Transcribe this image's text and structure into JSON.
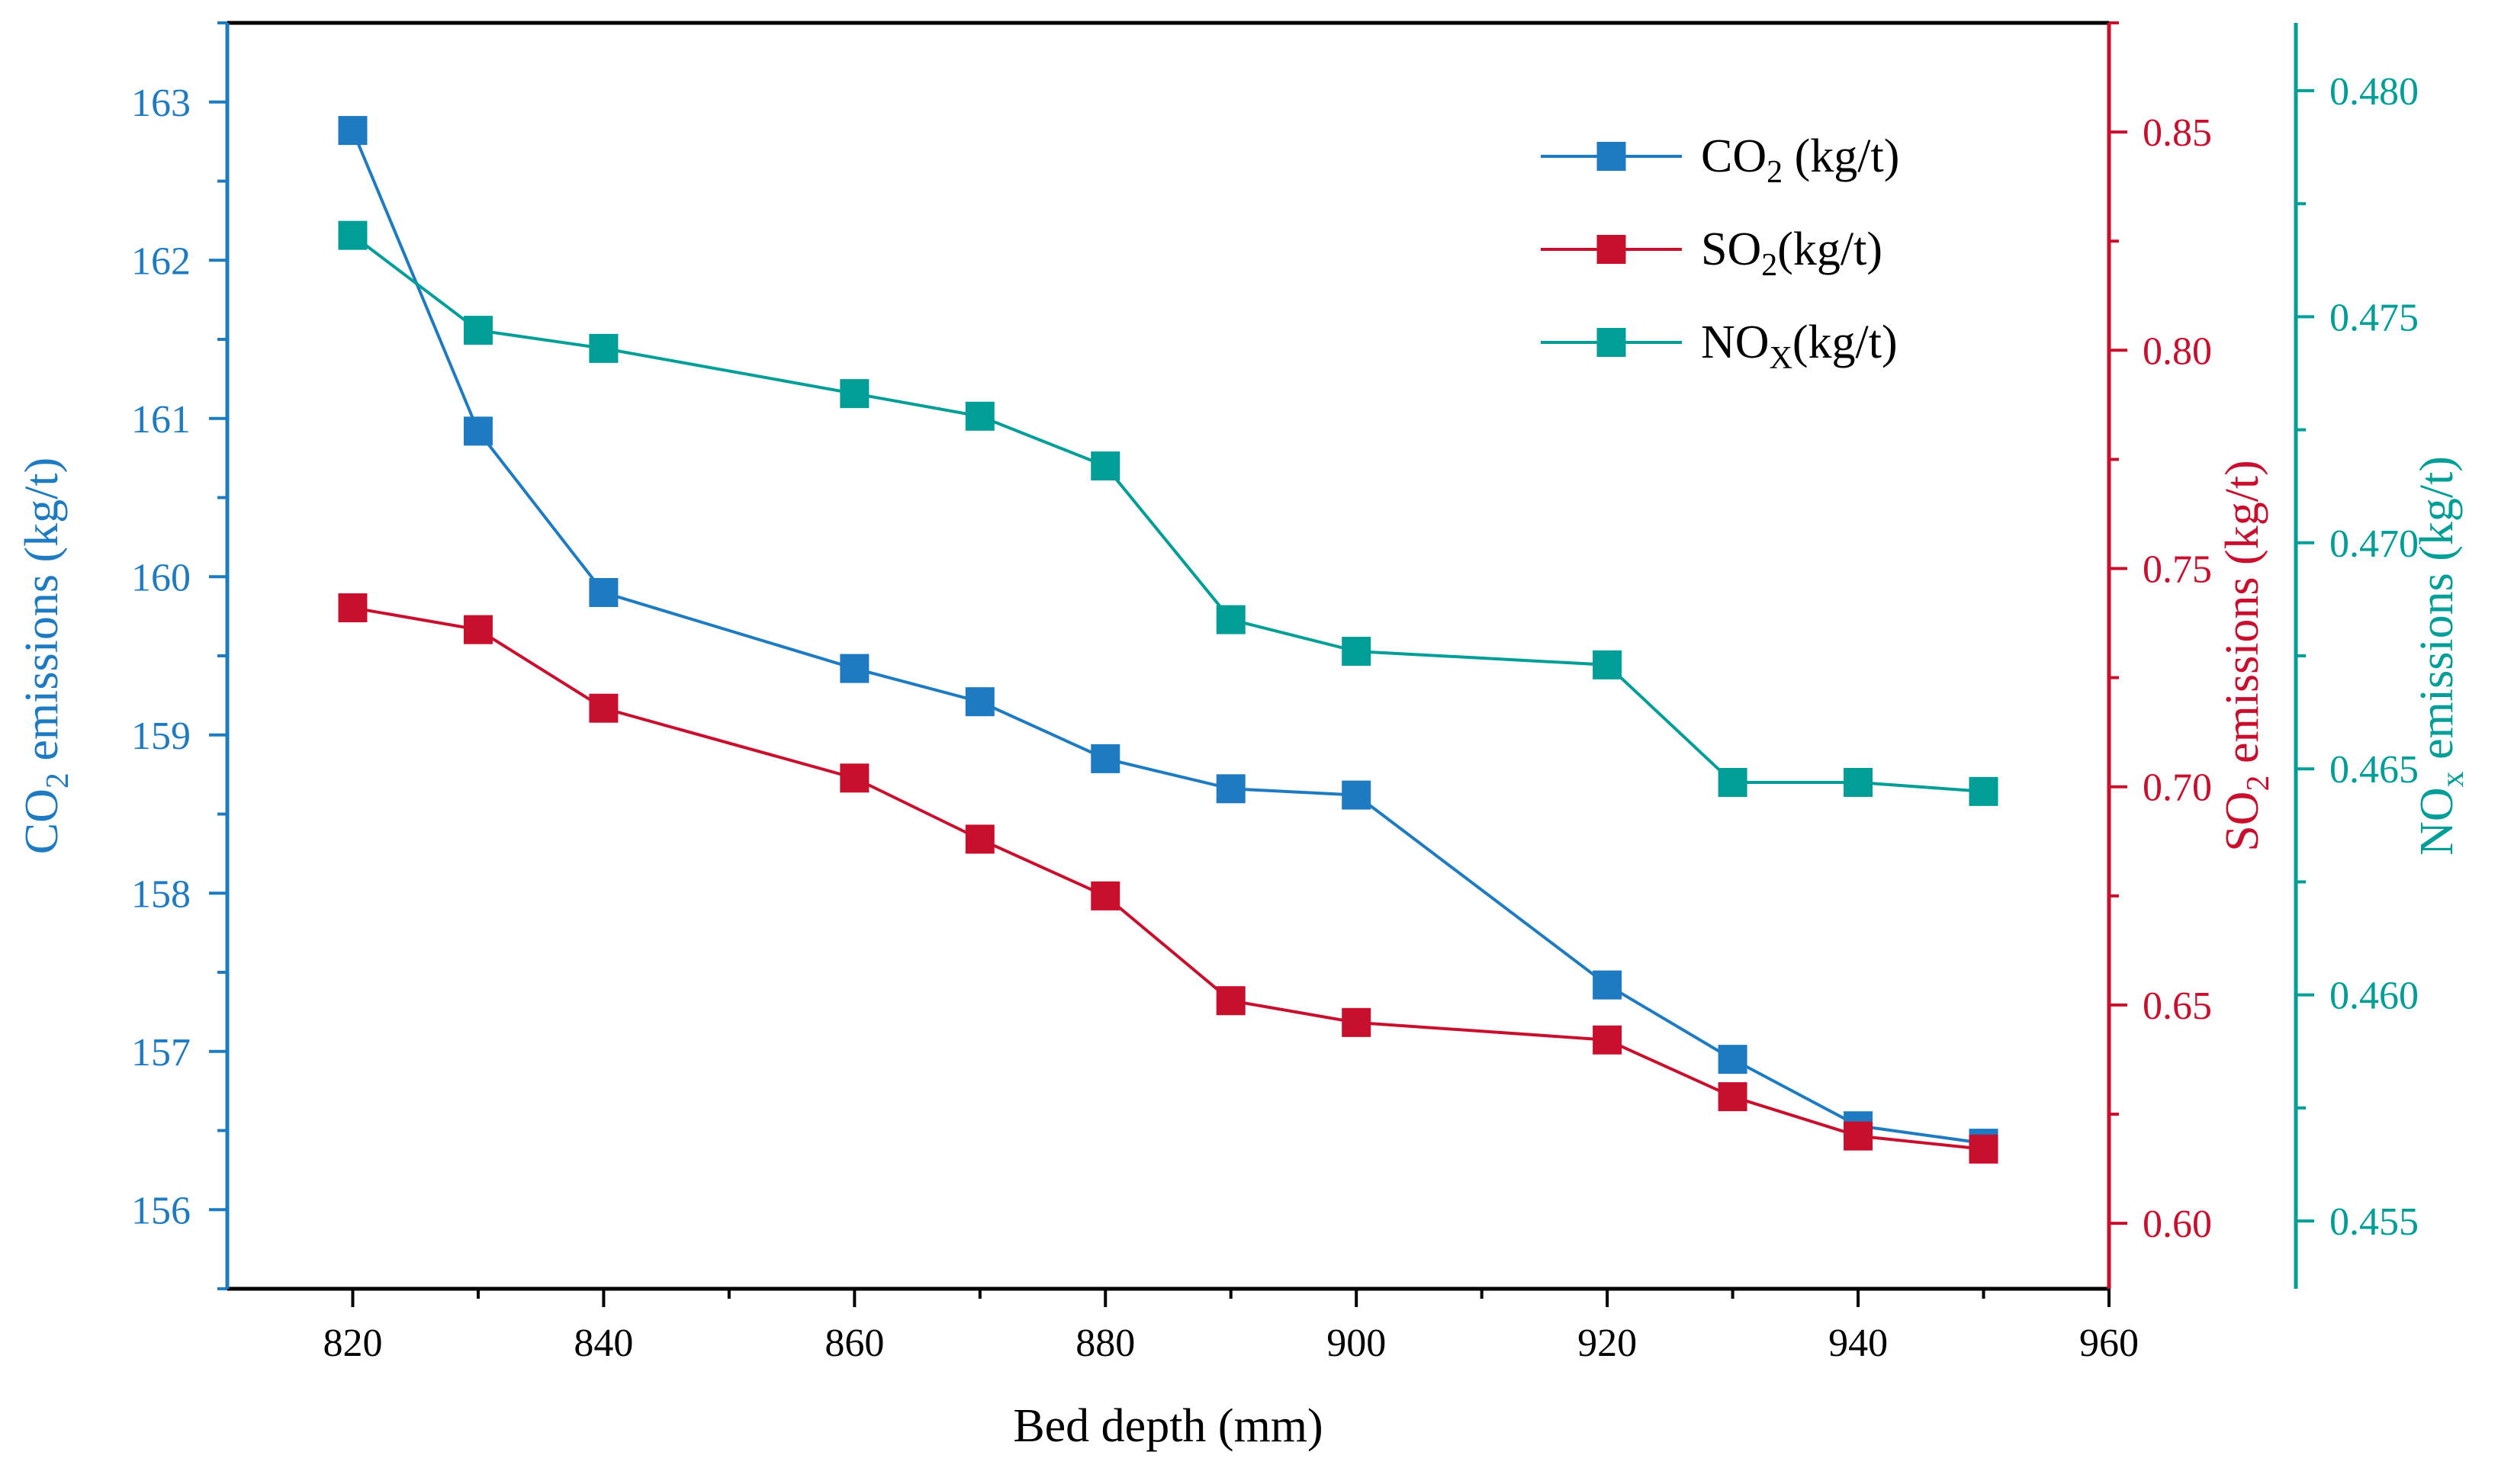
{
  "chart_data": {
    "type": "line",
    "xlabel": "Bed depth (mm)",
    "xlim": [
      810,
      960
    ],
    "xticks": [
      820,
      840,
      860,
      880,
      900,
      920,
      940,
      960
    ],
    "x": [
      820,
      830,
      840,
      860,
      870,
      880,
      890,
      900,
      920,
      930,
      940,
      950
    ],
    "axes": {
      "left": {
        "label_parts": [
          "CO",
          "2",
          " emissions (kg/t)"
        ],
        "ylim": [
          155.5,
          163.5
        ],
        "ticks": [
          156,
          157,
          158,
          159,
          160,
          161,
          162,
          163
        ],
        "decimals": 0,
        "color": "#1f7bc1"
      },
      "right1": {
        "label_parts": [
          "SO",
          "2",
          " emissions (kg/t)"
        ],
        "ylim": [
          0.585,
          0.875
        ],
        "ticks": [
          0.6,
          0.65,
          0.7,
          0.75,
          0.8,
          0.85
        ],
        "decimals": 2,
        "color": "#c8102e"
      },
      "right2": {
        "label_parts": [
          "NO",
          "x",
          " emissions (kg/t)"
        ],
        "ylim": [
          0.4535,
          0.4815
        ],
        "ticks": [
          0.455,
          0.46,
          0.465,
          0.47,
          0.475,
          0.48
        ],
        "decimals": 3,
        "color": "#009e96"
      }
    },
    "series": [
      {
        "name": "CO2 (kg/t)",
        "legend_parts": [
          "CO",
          "2",
          " (kg/t)"
        ],
        "axis": "left",
        "color": "#1f7bc1",
        "values": [
          162.82,
          160.92,
          159.9,
          159.42,
          159.21,
          158.85,
          158.66,
          158.62,
          157.42,
          156.95,
          156.53,
          156.42
        ]
      },
      {
        "name": "SO2(kg/t)",
        "legend_parts": [
          "SO",
          "2",
          "(kg/t)"
        ],
        "axis": "right1",
        "color": "#c8102e",
        "values": [
          0.741,
          0.736,
          0.718,
          0.702,
          0.688,
          0.675,
          0.651,
          0.646,
          0.642,
          0.629,
          0.62,
          0.617
        ]
      },
      {
        "name": "NOX(kg/t)",
        "legend_parts": [
          "NO",
          "X",
          "(kg/t)"
        ],
        "axis": "right2",
        "color": "#009e96",
        "values": [
          0.4768,
          0.4747,
          0.4743,
          0.4733,
          0.4728,
          0.4717,
          0.4683,
          0.4676,
          0.4673,
          0.4647,
          0.4647,
          0.4645
        ]
      }
    ],
    "legend_position": "top-right",
    "grid": false
  }
}
